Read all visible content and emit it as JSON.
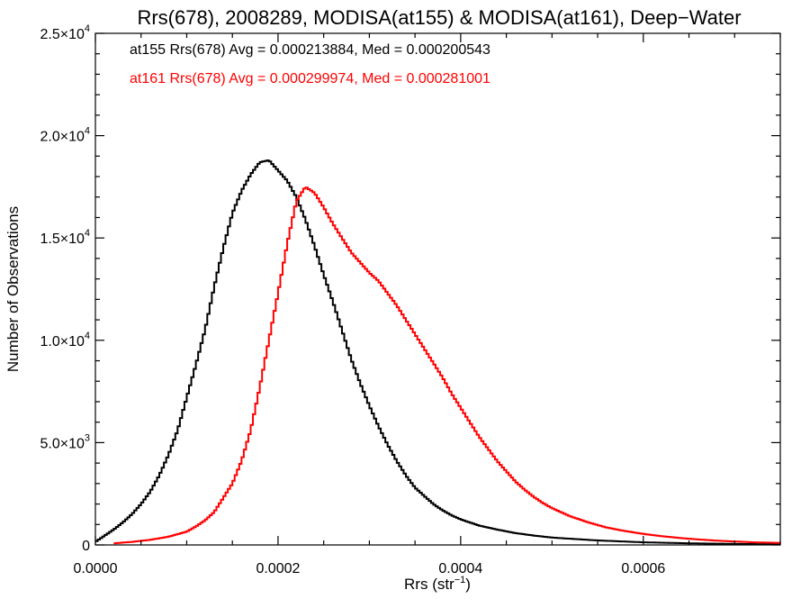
{
  "chart_data": {
    "type": "line",
    "title": "Rrs(678), 2008289, MODISA(at155) & MODISA(at161), Deep−Water",
    "xlabel_base": "Rrs (str",
    "xlabel_sup": "−1",
    "xlabel_end": ")",
    "ylabel": "Number of Observations",
    "xlim": [
      0,
      0.00075
    ],
    "ylim": [
      0,
      25000
    ],
    "x_ticks": [
      {
        "value": 0,
        "label": "0.0000"
      },
      {
        "value": 0.0002,
        "label": "0.0002"
      },
      {
        "value": 0.0004,
        "label": "0.0004"
      },
      {
        "value": 0.0006,
        "label": "0.0006"
      }
    ],
    "y_ticks": [
      {
        "value": 0,
        "mant": "0",
        "exp": ""
      },
      {
        "value": 5000,
        "mant": "5.0×10",
        "exp": "3"
      },
      {
        "value": 10000,
        "mant": "1.0×10",
        "exp": "4"
      },
      {
        "value": 15000,
        "mant": "1.5×10",
        "exp": "4"
      },
      {
        "value": 20000,
        "mant": "2.0×10",
        "exp": "4"
      },
      {
        "value": 25000,
        "mant": "2.5×10",
        "exp": "4"
      }
    ],
    "legend_placement": "top-left",
    "series": [
      {
        "name": "at155",
        "color": "#000000",
        "legend_text": "at155 Rrs(678) Avg = 0.000213884, Med = 0.000200543",
        "points": [
          [
            0.0,
            150
          ],
          [
            1e-05,
            450
          ],
          [
            2e-05,
            750
          ],
          [
            3e-05,
            1100
          ],
          [
            4e-05,
            1500
          ],
          [
            5e-05,
            2000
          ],
          [
            6e-05,
            2600
          ],
          [
            7e-05,
            3400
          ],
          [
            8e-05,
            4400
          ],
          [
            9e-05,
            5600
          ],
          [
            0.0001,
            7200
          ],
          [
            0.00011,
            8800
          ],
          [
            0.00012,
            10500
          ],
          [
            0.00013,
            12600
          ],
          [
            0.00014,
            14500
          ],
          [
            0.00015,
            16200
          ],
          [
            0.00016,
            17300
          ],
          [
            0.00017,
            18100
          ],
          [
            0.00018,
            18700
          ],
          [
            0.00019,
            18800
          ],
          [
            0.0002,
            18300
          ],
          [
            0.00021,
            17800
          ],
          [
            0.00022,
            17000
          ],
          [
            0.00023,
            15900
          ],
          [
            0.00024,
            14600
          ],
          [
            0.00025,
            13200
          ],
          [
            0.00026,
            11900
          ],
          [
            0.00027,
            10500
          ],
          [
            0.00028,
            9100
          ],
          [
            0.00029,
            7900
          ],
          [
            0.0003,
            6800
          ],
          [
            0.00031,
            5800
          ],
          [
            0.00032,
            4900
          ],
          [
            0.00033,
            4100
          ],
          [
            0.00034,
            3400
          ],
          [
            0.00035,
            2800
          ],
          [
            0.00036,
            2400
          ],
          [
            0.00037,
            2000
          ],
          [
            0.00038,
            1700
          ],
          [
            0.00039,
            1450
          ],
          [
            0.0004,
            1250
          ],
          [
            0.00042,
            950
          ],
          [
            0.00044,
            750
          ],
          [
            0.00046,
            580
          ],
          [
            0.00048,
            460
          ],
          [
            0.0005,
            360
          ],
          [
            0.00055,
            220
          ],
          [
            0.0006,
            130
          ],
          [
            0.00065,
            80
          ],
          [
            0.0007,
            50
          ],
          [
            0.00075,
            30
          ]
        ]
      },
      {
        "name": "at161",
        "color": "#ff0000",
        "legend_text": "at161 Rrs(678) Avg = 0.000299974, Med = 0.000281001",
        "points": [
          [
            2e-05,
            80
          ],
          [
            4e-05,
            150
          ],
          [
            6e-05,
            250
          ],
          [
            8e-05,
            400
          ],
          [
            0.0001,
            650
          ],
          [
            0.00011,
            900
          ],
          [
            0.00012,
            1200
          ],
          [
            0.00013,
            1600
          ],
          [
            0.00014,
            2300
          ],
          [
            0.00015,
            3000
          ],
          [
            0.00016,
            4100
          ],
          [
            0.00017,
            5600
          ],
          [
            0.00018,
            7700
          ],
          [
            0.00019,
            10000
          ],
          [
            0.0002,
            12300
          ],
          [
            0.00021,
            14700
          ],
          [
            0.00022,
            16800
          ],
          [
            0.00023,
            17500
          ],
          [
            0.00024,
            17200
          ],
          [
            0.00025,
            16500
          ],
          [
            0.00026,
            15700
          ],
          [
            0.00027,
            15000
          ],
          [
            0.00028,
            14300
          ],
          [
            0.00029,
            13800
          ],
          [
            0.0003,
            13300
          ],
          [
            0.00031,
            12900
          ],
          [
            0.00032,
            12300
          ],
          [
            0.00033,
            11700
          ],
          [
            0.00034,
            11000
          ],
          [
            0.00035,
            10300
          ],
          [
            0.00036,
            9600
          ],
          [
            0.00037,
            8900
          ],
          [
            0.00038,
            8200
          ],
          [
            0.00039,
            7400
          ],
          [
            0.0004,
            6700
          ],
          [
            0.00041,
            6000
          ],
          [
            0.00042,
            5300
          ],
          [
            0.00043,
            4700
          ],
          [
            0.00044,
            4100
          ],
          [
            0.00045,
            3600
          ],
          [
            0.00046,
            3100
          ],
          [
            0.00047,
            2700
          ],
          [
            0.00048,
            2350
          ],
          [
            0.00049,
            2050
          ],
          [
            0.0005,
            1800
          ],
          [
            0.00052,
            1400
          ],
          [
            0.00054,
            1100
          ],
          [
            0.00056,
            850
          ],
          [
            0.00058,
            680
          ],
          [
            0.0006,
            540
          ],
          [
            0.00062,
            430
          ],
          [
            0.00064,
            340
          ],
          [
            0.00066,
            270
          ],
          [
            0.00068,
            210
          ],
          [
            0.0007,
            170
          ],
          [
            0.00072,
            130
          ],
          [
            0.00075,
            100
          ]
        ]
      }
    ]
  }
}
